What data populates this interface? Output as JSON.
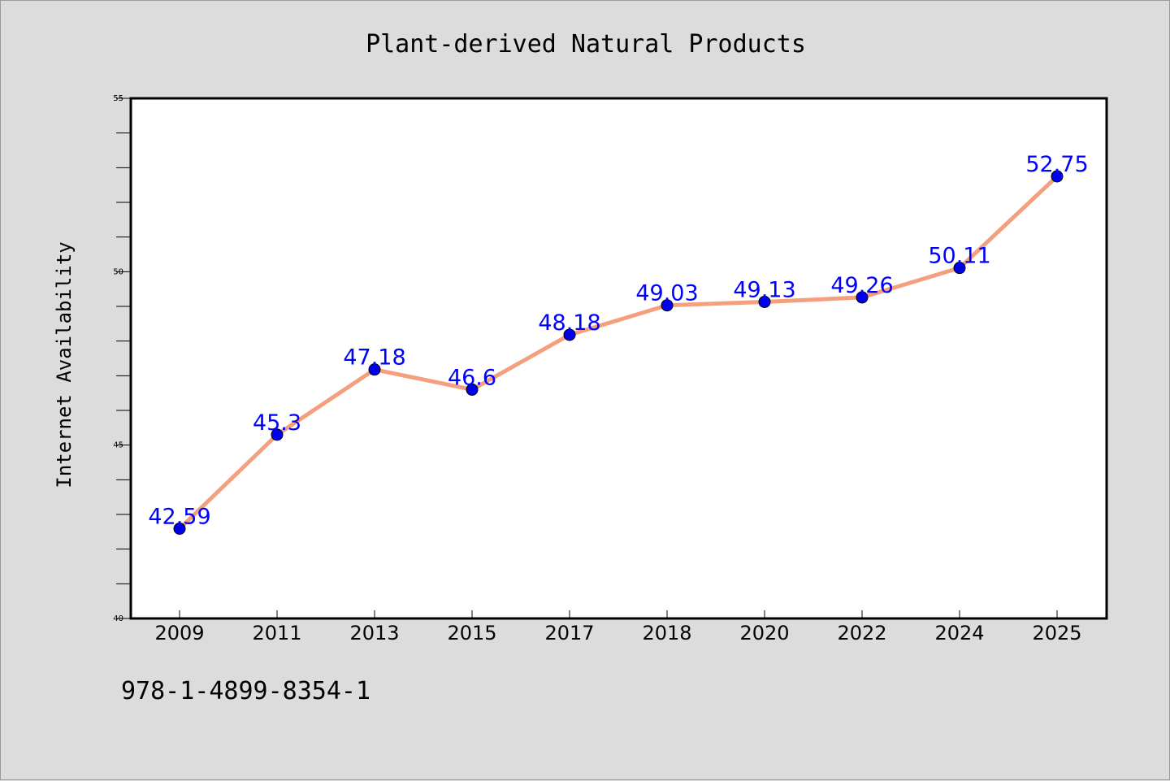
{
  "chart_data": {
    "type": "line",
    "title": "Plant-derived Natural Products",
    "xlabel": "",
    "ylabel": "Internet Availability",
    "categories": [
      "2009",
      "2011",
      "2013",
      "2015",
      "2017",
      "2018",
      "2020",
      "2022",
      "2024",
      "2025"
    ],
    "series": [
      {
        "values": [
          42.59,
          45.3,
          47.18,
          46.6,
          48.18,
          49.03,
          49.13,
          49.26,
          50.11,
          52.75
        ],
        "data_labels": [
          "42.59",
          "45.3",
          "47.18",
          "46.6",
          "48.18",
          "49.03",
          "49.13",
          "49.26",
          "50.11",
          "52.75"
        ],
        "line_color": "#f4a07e",
        "marker_color": "#0000ee"
      }
    ],
    "ylim": [
      40,
      55
    ],
    "yticks": [
      "40",
      "45",
      "50",
      "55"
    ],
    "grid": false,
    "label_color": "#0000ff"
  },
  "footer": {
    "isbn": "978-1-4899-8354-1"
  }
}
